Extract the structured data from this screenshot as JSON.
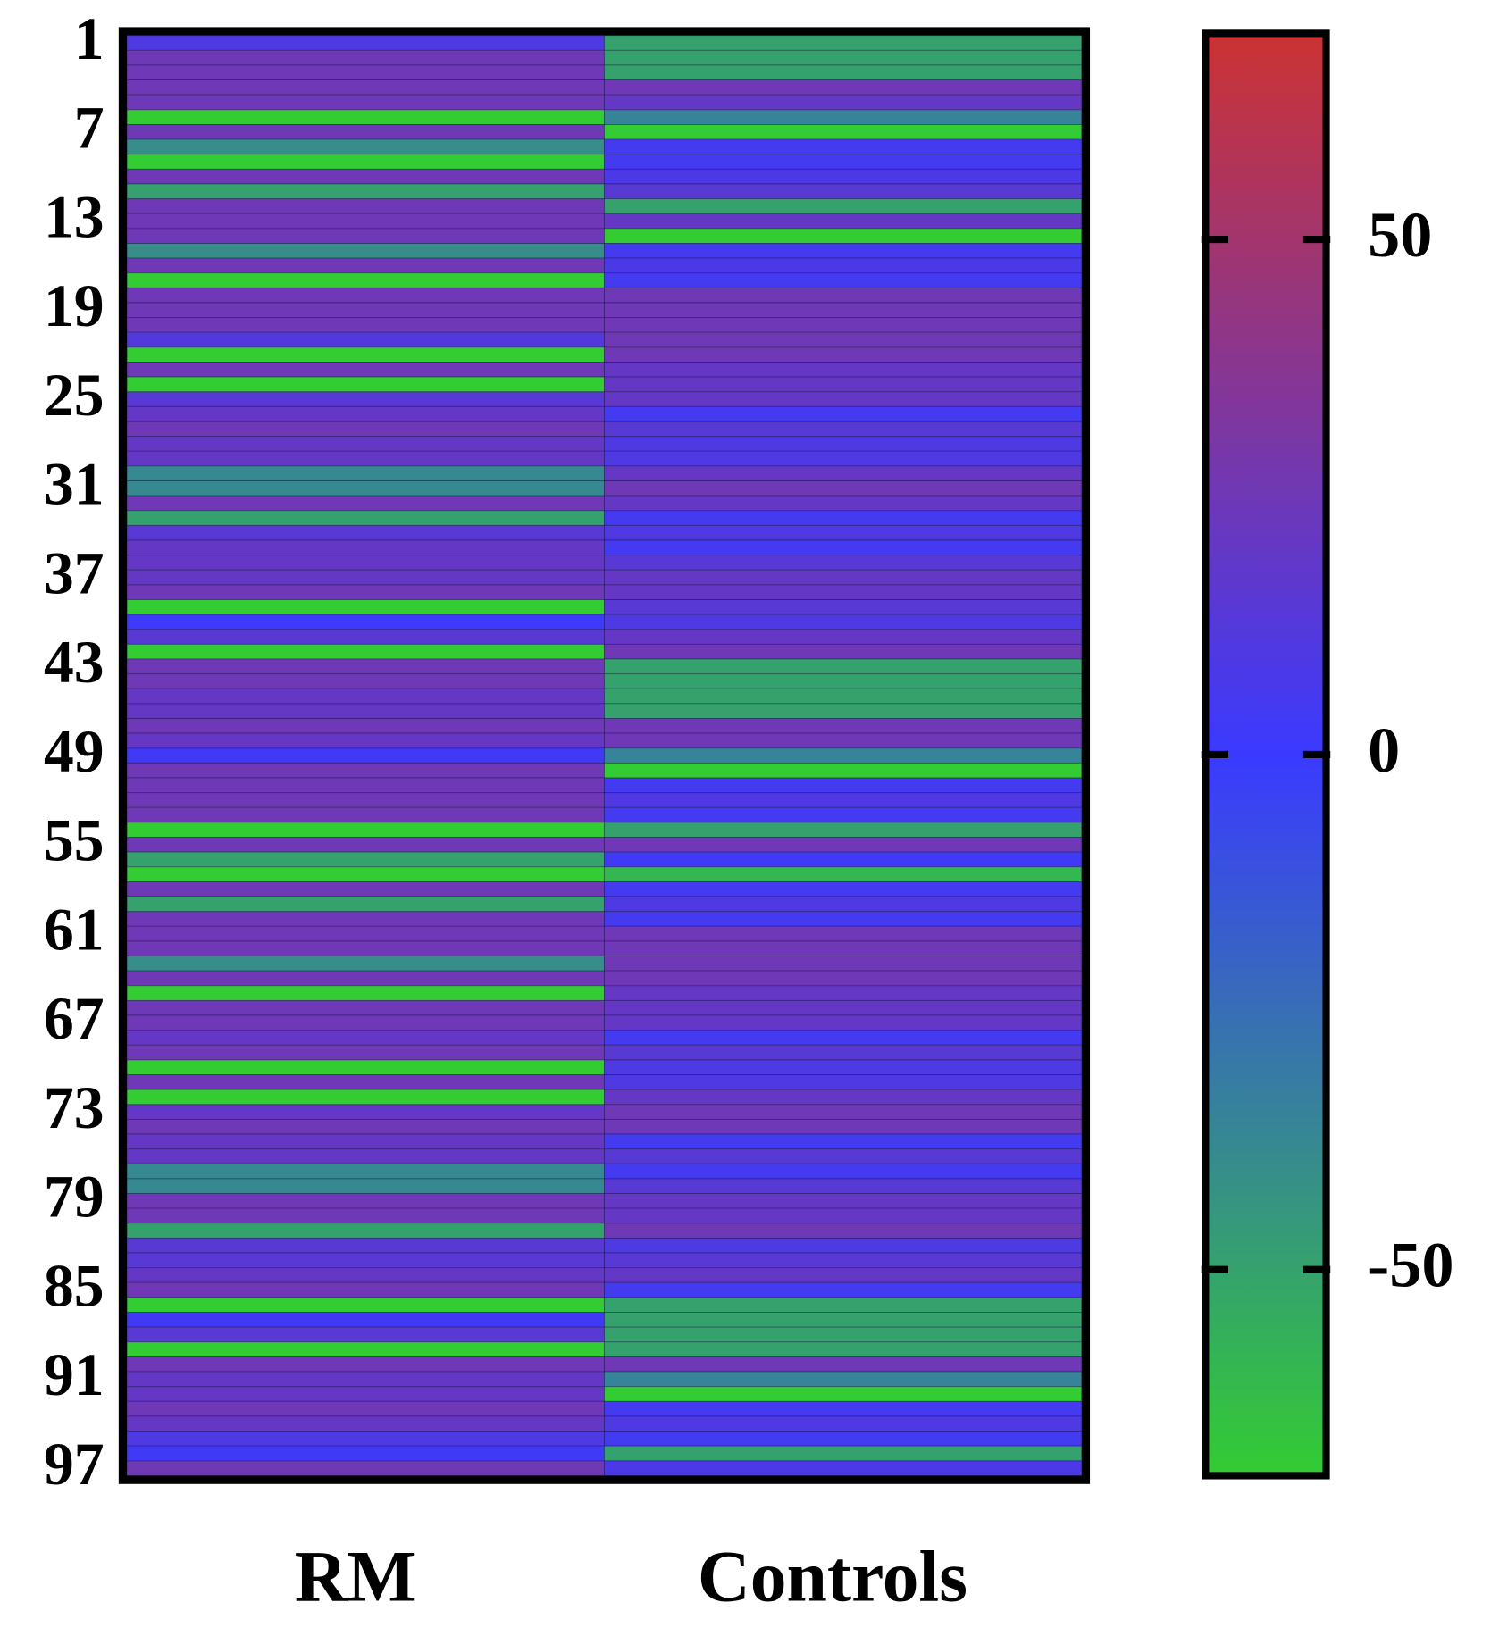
{
  "chart_data": {
    "type": "heatmap",
    "columns": [
      "RM",
      "Controls"
    ],
    "rows": [
      "1",
      null,
      null,
      null,
      null,
      null,
      "7",
      null,
      null,
      null,
      null,
      null,
      "13",
      null,
      null,
      null,
      null,
      null,
      "19",
      null,
      null,
      null,
      null,
      null,
      "25",
      null,
      null,
      null,
      null,
      null,
      "31",
      null,
      null,
      null,
      null,
      null,
      "37",
      null,
      null,
      null,
      null,
      null,
      "43",
      null,
      null,
      null,
      null,
      null,
      "49",
      null,
      null,
      null,
      null,
      null,
      "55",
      null,
      null,
      null,
      null,
      null,
      "61",
      null,
      null,
      null,
      null,
      null,
      "67",
      null,
      null,
      null,
      null,
      null,
      "73",
      null,
      null,
      null,
      null,
      null,
      "79",
      null,
      null,
      null,
      null,
      null,
      "85",
      null,
      null,
      null,
      null,
      null,
      "91",
      null,
      null,
      null,
      null,
      null,
      "97"
    ],
    "values": [
      [
        10,
        25,
        25,
        25,
        25,
        -70,
        25,
        -40,
        -70,
        25,
        -50,
        25,
        25,
        25,
        -40,
        25,
        -70,
        25,
        25,
        25,
        12,
        -70,
        25,
        -70,
        15,
        20,
        25,
        20,
        20,
        -38,
        -38,
        25,
        -50,
        15,
        20,
        20,
        20,
        25,
        -70,
        2,
        15,
        -70,
        25,
        25,
        20,
        20,
        25,
        20,
        3,
        25,
        25,
        25,
        25,
        -70,
        25,
        -50,
        -70,
        25,
        -50,
        25,
        25,
        25,
        -40,
        25,
        -70,
        25,
        25,
        20,
        25,
        -70,
        25,
        -70,
        20,
        25,
        20,
        20,
        -38,
        -38,
        25,
        25,
        -50,
        15,
        15,
        20,
        25,
        -70,
        3,
        15,
        -70,
        25,
        20,
        20,
        25,
        20,
        10,
        3,
        25
      ],
      [
        -50,
        -50,
        -50,
        25,
        20,
        -35,
        -70,
        5,
        5,
        8,
        15,
        -50,
        20,
        -70,
        5,
        8,
        5,
        25,
        25,
        25,
        25,
        25,
        20,
        20,
        20,
        5,
        15,
        10,
        10,
        20,
        25,
        20,
        5,
        10,
        5,
        15,
        20,
        20,
        15,
        10,
        20,
        25,
        -50,
        -50,
        -50,
        -50,
        25,
        25,
        -35,
        -70,
        5,
        10,
        5,
        -50,
        25,
        3,
        -60,
        5,
        10,
        5,
        25,
        25,
        25,
        25,
        20,
        20,
        20,
        5,
        15,
        10,
        10,
        20,
        25,
        25,
        5,
        15,
        5,
        15,
        20,
        20,
        25,
        10,
        15,
        20,
        5,
        -50,
        -50,
        -50,
        -50,
        25,
        -35,
        -70,
        5,
        10,
        5,
        -50,
        8
      ]
    ],
    "zlim": [
      -70,
      70
    ],
    "zticks": [
      -50,
      0,
      50
    ],
    "colors": [
      "#33cc33",
      "#3a3aff",
      "#cc3333"
    ]
  }
}
